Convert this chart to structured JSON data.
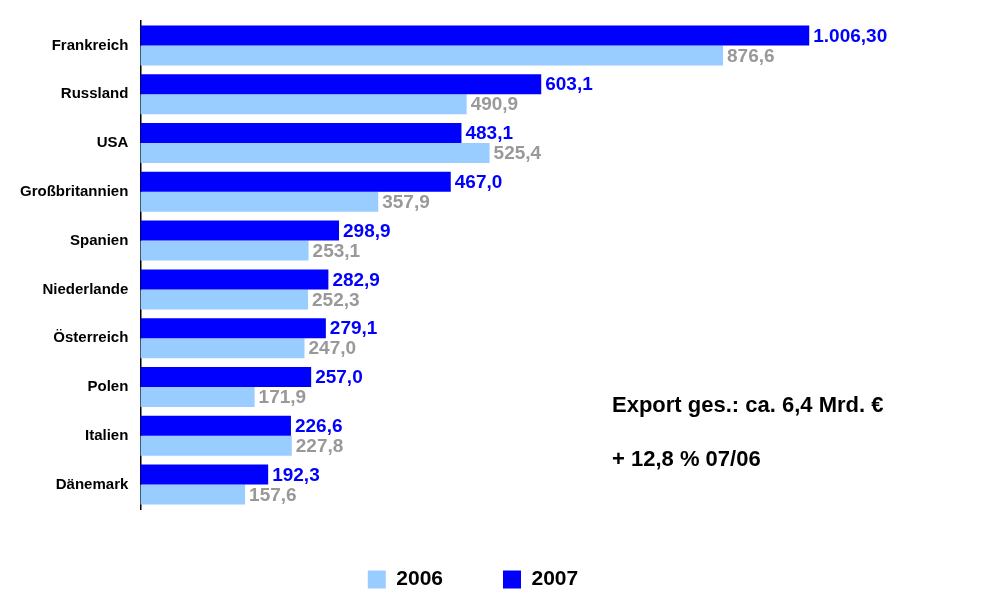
{
  "chart_data": {
    "type": "bar",
    "orientation": "horizontal",
    "categories": [
      "Frankreich",
      "Russland",
      "USA",
      "Großbritannien",
      "Spanien",
      "Niederlande",
      "Österreich",
      "Polen",
      "Italien",
      "Dänemark"
    ],
    "series": [
      {
        "name": "2007",
        "color": "#0000ff",
        "values": [
          1006.3,
          603.1,
          483.1,
          467.0,
          298.9,
          282.9,
          279.1,
          257.0,
          226.6,
          192.3
        ],
        "value_labels": [
          "1.006,30",
          "603,1",
          "483,1",
          "467,0",
          "298,9",
          "282,9",
          "279,1",
          "257,0",
          "226,6",
          "192,3"
        ]
      },
      {
        "name": "2006",
        "color": "#99ccff",
        "values": [
          876.6,
          490.9,
          525.4,
          357.9,
          253.1,
          252.3,
          247.0,
          171.9,
          227.8,
          157.6
        ],
        "value_labels": [
          "876,6",
          "490,9",
          "525,4",
          "357,9",
          "253,1",
          "252,3",
          "247,0",
          "171,9",
          "227,8",
          "157,6"
        ]
      }
    ],
    "tick_labels": "y",
    "legend": "bottom",
    "annotations": [
      "Export ges.: ca. 6,4 Mrd. €",
      "+ 12,8 % 07/06"
    ]
  }
}
